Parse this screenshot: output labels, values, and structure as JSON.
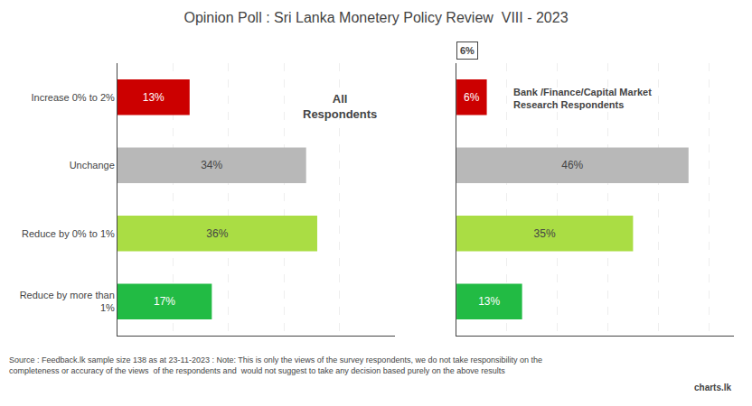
{
  "chart_data": [
    {
      "type": "bar",
      "orientation": "horizontal",
      "title": "Opinion Poll : Sri Lanka Monetery Policy Review  VIII - 2023",
      "categories": [
        "Increase 0% to 2%",
        "Unchange",
        "Reduce by 0% to 1%",
        "Reduce by more than\n1%"
      ],
      "values": [
        13,
        34,
        36,
        17
      ],
      "value_labels": [
        "13%",
        "34%",
        "36%",
        "17%"
      ],
      "colors": [
        "#cc0000",
        "#b8b8b8",
        "#aadd44",
        "#22bb44"
      ],
      "xlim": [
        0,
        50
      ],
      "xticks": [
        10,
        20,
        30,
        40,
        50
      ],
      "grid": true,
      "data_labels": true,
      "tick_labels": "y",
      "annotations": [
        "All\nRespondents",
        "Source : Feedback.lk sample size 138 as at 23-11-2023 : Note: This is only the views of the survey respondents, we do not take responsibility on the\ncompleteness or accuracy of the views  of the respondents and  would not suggest to take any decision based purely on the above results",
        "charts.lk"
      ]
    },
    {
      "type": "bar",
      "orientation": "horizontal",
      "categories": [
        "Increase 0% to 2%",
        "Unchange",
        "Reduce by 0% to 1%",
        "Reduce by more than\n1%"
      ],
      "values": [
        6,
        46,
        35,
        13
      ],
      "value_labels": [
        "6%",
        "46%",
        "35%",
        "13%"
      ],
      "colors": [
        "#cc0000",
        "#b8b8b8",
        "#aadd44",
        "#22bb44"
      ],
      "xlim": [
        0,
        55
      ],
      "xticks": [
        10,
        20,
        30,
        40,
        50
      ],
      "grid": true,
      "data_labels": true,
      "tick_labels": false,
      "annotations": [
        "6%",
        "Bank /Finance/Capital Market\nResearch Respondents"
      ]
    }
  ]
}
